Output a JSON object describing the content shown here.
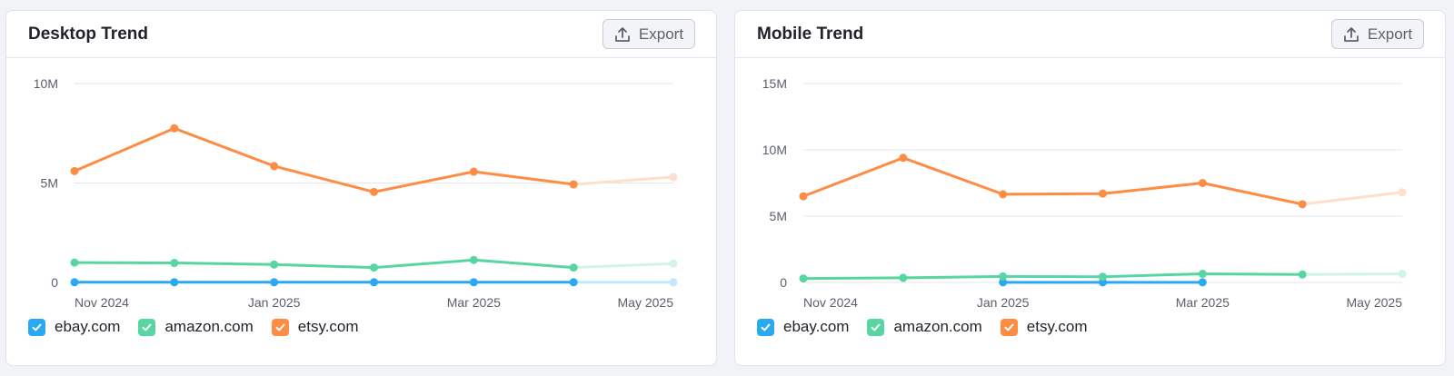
{
  "export_label": "Export",
  "legend": [
    {
      "label": "ebay.com",
      "color": "#2aa9f3"
    },
    {
      "label": "amazon.com",
      "color": "#58d6a1"
    },
    {
      "label": "etsy.com",
      "color": "#fd8c44"
    }
  ],
  "chart_data": [
    {
      "type": "line",
      "title": "Desktop Trend",
      "x": [
        "Nov 2024",
        "Dec 2024",
        "Jan 2025",
        "Feb 2025",
        "Mar 2025",
        "Apr 2025",
        "May 2025"
      ],
      "x_tick_labels": [
        "Nov 2024",
        "Jan 2025",
        "Mar 2025",
        "May 2025"
      ],
      "y_tick_labels": [
        "10M",
        "5M",
        "0"
      ],
      "ylim": [
        0,
        10000000
      ],
      "y_ticks": [
        0,
        5000000,
        10000000
      ],
      "grid": true,
      "legend_placement": "bottom-left",
      "series": [
        {
          "name": "ebay.com",
          "color": "#2aa9f3",
          "values": [
            10000,
            10000,
            10000,
            10000,
            10000,
            10000,
            10000
          ]
        },
        {
          "name": "amazon.com",
          "color": "#58d6a1",
          "values": [
            1000000,
            980000,
            900000,
            750000,
            1130000,
            750000,
            950000
          ]
        },
        {
          "name": "etsy.com",
          "color": "#fd8c44",
          "values": [
            5600000,
            7750000,
            5850000,
            4550000,
            5570000,
            4930000,
            5300000
          ]
        }
      ]
    },
    {
      "type": "line",
      "title": "Mobile Trend",
      "x": [
        "Nov 2024",
        "Dec 2024",
        "Jan 2025",
        "Feb 2025",
        "Mar 2025",
        "Apr 2025",
        "May 2025"
      ],
      "x_tick_labels": [
        "Nov 2024",
        "Jan 2025",
        "Mar 2025",
        "May 2025"
      ],
      "y_tick_labels": [
        "15M",
        "10M",
        "5M",
        "0"
      ],
      "ylim": [
        0,
        15000000
      ],
      "y_ticks": [
        0,
        5000000,
        10000000,
        15000000
      ],
      "grid": true,
      "legend_placement": "bottom-left",
      "series": [
        {
          "name": "ebay.com",
          "color": "#2aa9f3",
          "values": [
            null,
            null,
            10000,
            10000,
            10000,
            null,
            null
          ]
        },
        {
          "name": "amazon.com",
          "color": "#58d6a1",
          "values": [
            300000,
            350000,
            450000,
            430000,
            650000,
            600000,
            650000
          ]
        },
        {
          "name": "etsy.com",
          "color": "#fd8c44",
          "values": [
            6500000,
            9400000,
            6650000,
            6700000,
            7500000,
            5900000,
            6800000
          ]
        }
      ]
    }
  ]
}
